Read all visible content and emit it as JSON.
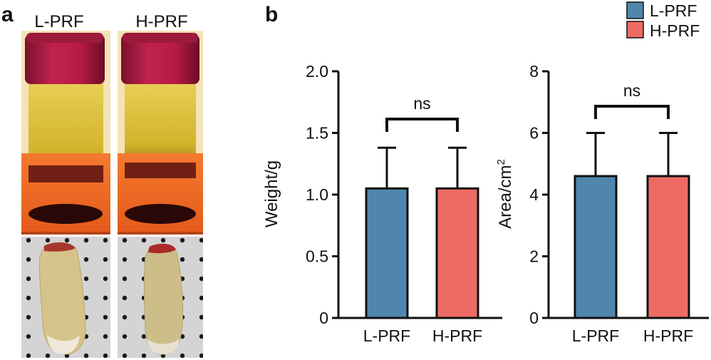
{
  "panel_a": {
    "label": "a",
    "samples": [
      "L-PRF",
      "H-PRF"
    ]
  },
  "panel_b": {
    "label": "b"
  },
  "legend": {
    "items": [
      {
        "name": "L-PRF",
        "color": "#5086ad"
      },
      {
        "name": "H-PRF",
        "color": "#ee6b63"
      }
    ]
  },
  "colors": {
    "cap": "#b51a45",
    "cap_dark": "#7d0f2e",
    "serum": "#d9c23a",
    "clot": "#5a1010",
    "rack": "#f36a26",
    "board": "#d6d6d6"
  },
  "chart_data": [
    {
      "type": "bar",
      "categories": [
        "L-PRF",
        "H-PRF"
      ],
      "values": [
        1.05,
        1.05
      ],
      "errors": [
        0.33,
        0.33
      ],
      "ylabel": "Weight/g",
      "xlabel": "",
      "ylim": [
        0,
        2.0
      ],
      "yticks": [
        "0",
        "0.5",
        "1.0",
        "1.5",
        "2.0"
      ],
      "annotation": "ns",
      "colors": [
        "#5086ad",
        "#ee6b63"
      ]
    },
    {
      "type": "bar",
      "categories": [
        "L-PRF",
        "H-PRF"
      ],
      "values": [
        4.6,
        4.6
      ],
      "errors": [
        1.4,
        1.4
      ],
      "ylabel": "Area/cm",
      "ylabel_superscript": "2",
      "xlabel": "",
      "ylim": [
        0,
        8
      ],
      "yticks": [
        "0",
        "2",
        "4",
        "6",
        "8"
      ],
      "annotation": "ns",
      "colors": [
        "#5086ad",
        "#ee6b63"
      ]
    }
  ]
}
